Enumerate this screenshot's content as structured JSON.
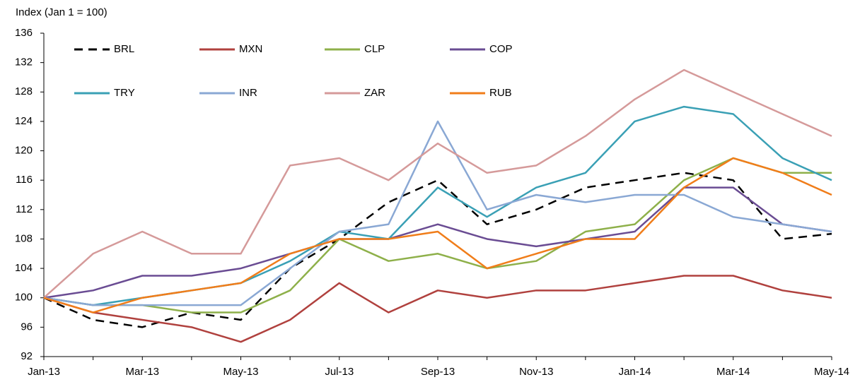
{
  "chart_data": {
    "type": "line",
    "y_label": "Index (Jan 1 = 100)",
    "categories": [
      "Jan-13",
      null,
      "Mar-13",
      null,
      "May-13",
      null,
      "Jul-13",
      null,
      "Sep-13",
      null,
      "Nov-13",
      null,
      "Jan-14",
      null,
      "Mar-14",
      null,
      "May-14"
    ],
    "series": [
      {
        "name": "BRL",
        "color": "#000000",
        "line_style": "dashed",
        "values": [
          100,
          97,
          96,
          98,
          97,
          104,
          108,
          113,
          116,
          110,
          112,
          115,
          116,
          117,
          116,
          108,
          108.7
        ]
      },
      {
        "name": "MXN",
        "color": "#b0413e",
        "line_style": "solid",
        "values": [
          100,
          98,
          97,
          96,
          94,
          97,
          102,
          98,
          101,
          100,
          101,
          101,
          102,
          103,
          103,
          101,
          100
        ]
      },
      {
        "name": "CLP",
        "color": "#8eb04a",
        "line_style": "solid",
        "values": [
          100,
          99,
          99,
          98,
          98,
          101,
          108,
          105,
          106,
          104,
          105,
          109,
          110,
          116,
          119,
          117,
          117
        ]
      },
      {
        "name": "COP",
        "color": "#6a4c93",
        "line_style": "solid",
        "values": [
          100,
          101,
          103,
          103,
          104,
          106,
          108,
          108,
          110,
          108,
          107,
          108,
          109,
          115,
          115,
          110,
          109
        ]
      },
      {
        "name": "TRY",
        "color": "#3aa0b5",
        "line_style": "solid",
        "values": [
          100,
          99,
          100,
          101,
          102,
          105,
          109,
          108,
          115,
          111,
          115,
          117,
          124,
          126,
          125,
          119,
          116
        ]
      },
      {
        "name": "INR",
        "color": "#8aa8d4",
        "line_style": "solid",
        "values": [
          100,
          99,
          99,
          99,
          99,
          104,
          109,
          110,
          124,
          112,
          114,
          113,
          114,
          114,
          111,
          110,
          109
        ]
      },
      {
        "name": "ZAR",
        "color": "#d59a9a",
        "line_style": "solid",
        "values": [
          100,
          106,
          109,
          106,
          106,
          118,
          119,
          116,
          121,
          117,
          118,
          122,
          127,
          131,
          128,
          125,
          122
        ]
      },
      {
        "name": "RUB",
        "color": "#f07d1a",
        "line_style": "solid",
        "values": [
          100,
          98,
          100,
          101,
          102,
          106,
          108,
          108,
          109,
          104,
          106,
          108,
          108,
          115,
          119,
          117,
          114
        ]
      }
    ],
    "ylim": [
      92,
      136
    ],
    "yticks": [
      92,
      96,
      100,
      104,
      108,
      112,
      116,
      120,
      124,
      128,
      132,
      136
    ],
    "grid": false,
    "legend": "top-left"
  }
}
